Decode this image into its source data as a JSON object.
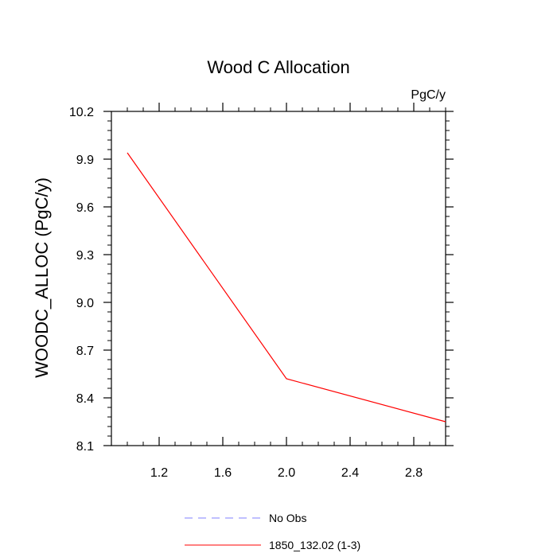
{
  "chart_data": {
    "type": "line",
    "title": "Wood C Allocation",
    "units_label": "PgC/y",
    "xlabel": "",
    "ylabel": "WOODC_ALLOC  (PgC/y)",
    "xlim": [
      0.9,
      3.0
    ],
    "ylim": [
      8.1,
      10.2
    ],
    "x_ticks": [
      1.2,
      1.6,
      2.0,
      2.4,
      2.8
    ],
    "x_tick_labels": [
      "1.2",
      "1.6",
      "2.0",
      "2.4",
      "2.8"
    ],
    "y_ticks": [
      8.1,
      8.4,
      8.7,
      9.0,
      9.3,
      9.6,
      9.9,
      10.2
    ],
    "y_tick_labels": [
      "8.1",
      "8.4",
      "8.7",
      "9.0",
      "9.3",
      "9.6",
      "9.9",
      "10.2"
    ],
    "grid": false,
    "legend_position": "bottom",
    "series": [
      {
        "name": "1850_132.02 (1-3)",
        "color": "#ff0000",
        "dash": "solid",
        "x": [
          1.0,
          2.0,
          3.0
        ],
        "values": [
          9.94,
          8.52,
          8.25
        ]
      }
    ],
    "legend": [
      {
        "name": "No Obs",
        "color": "#8080ff",
        "dash": "dashed"
      },
      {
        "name": "1850_132.02 (1-3)",
        "color": "#ff0000",
        "dash": "solid"
      }
    ]
  }
}
